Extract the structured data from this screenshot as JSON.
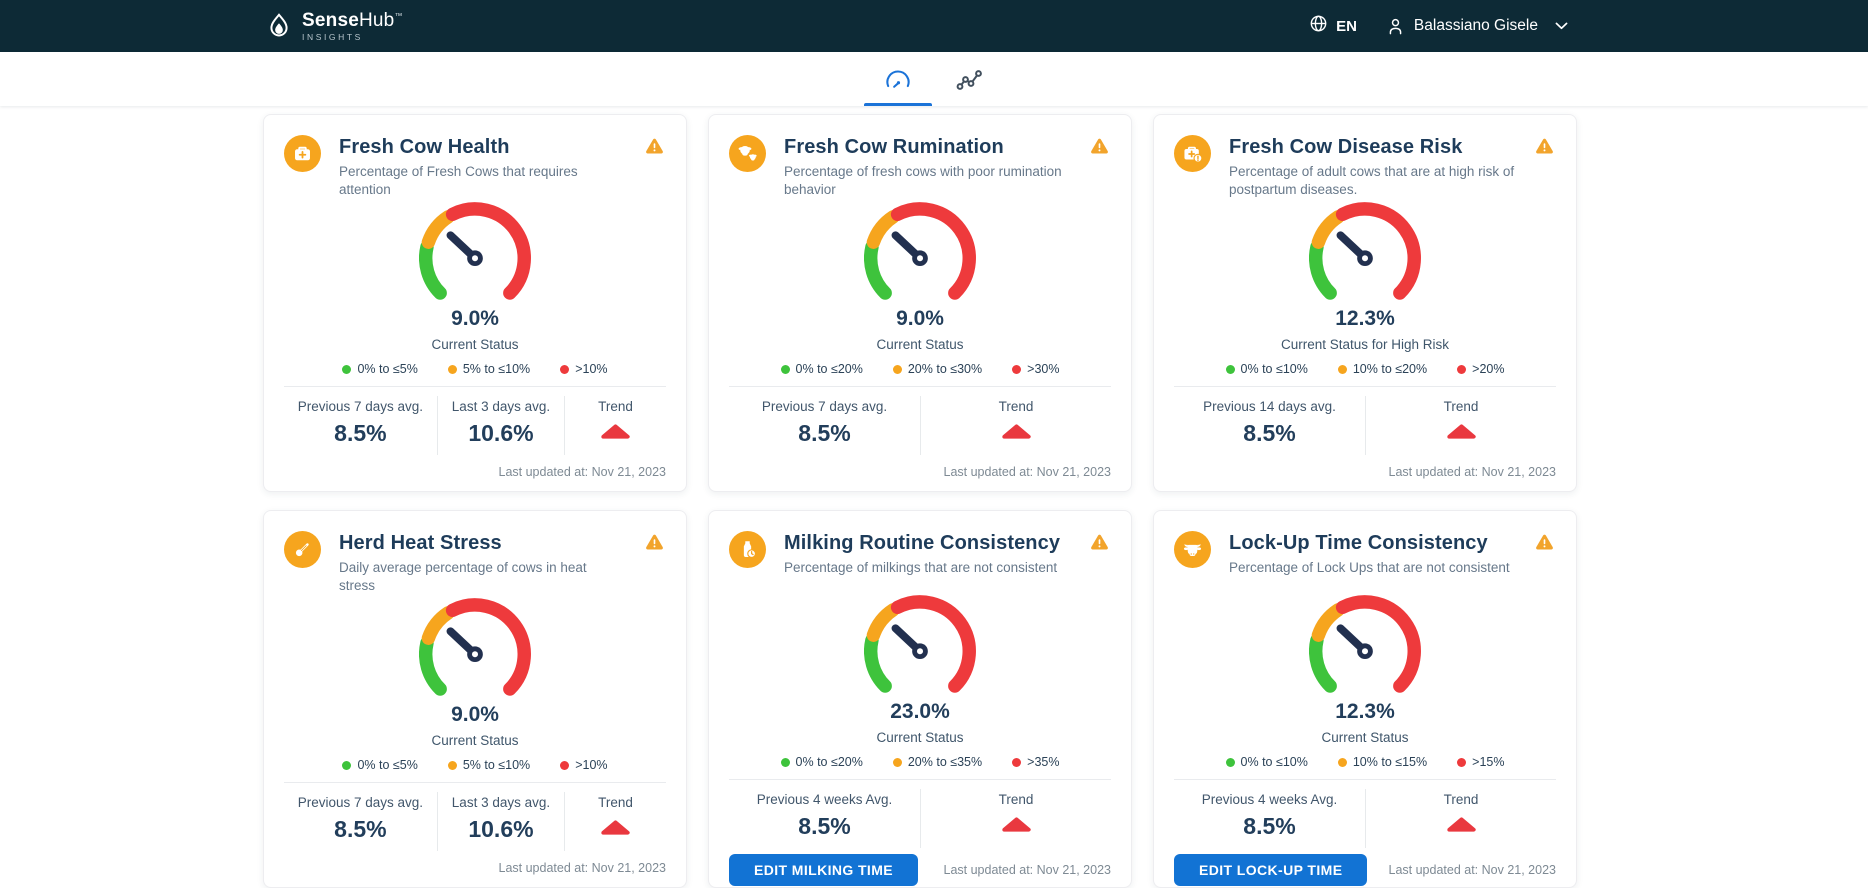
{
  "colors": {
    "header_bg": "#0d2a36",
    "accent_blue": "#1b73d8",
    "green": "#3ec33c",
    "orange": "#f6a51e",
    "red": "#ee3a3c",
    "trend_red": "#e9383f",
    "warning": "#f2a42c",
    "needle": "#22304f"
  },
  "header": {
    "brand_bold": "Sense",
    "brand_light": "Hub",
    "brand_tm": "™",
    "brand_sub": "INSIGHTS",
    "language": "EN",
    "user_name": "Balassiano Gisele"
  },
  "tabs": [
    {
      "id": "gauges",
      "icon": "gauge-icon",
      "active": true
    },
    {
      "id": "analytics",
      "icon": "analytics-icon",
      "active": false
    }
  ],
  "cards": [
    {
      "title": "Fresh Cow Health",
      "subtitle": "Percentage of Fresh Cows that requires attention",
      "icon": "medkit",
      "alert": true,
      "gauge": {
        "value": "9.0%",
        "label": "Current Status",
        "needle_deg": 137
      },
      "legend": [
        {
          "color": "#3ec33c",
          "label": "0% to ≤5%"
        },
        {
          "color": "#f6a51e",
          "label": "5% to ≤10%"
        },
        {
          "color": "#ee3a3c",
          "label": ">10%"
        }
      ],
      "stats": [
        {
          "label": "Previous 7 days avg.",
          "value": "8.5%"
        },
        {
          "label": "Last 3 days avg.",
          "value": "10.6%"
        },
        {
          "label": "Trend",
          "trend": "up"
        }
      ],
      "button": null,
      "last_updated": "Last updated at: Nov 21, 2023"
    },
    {
      "title": "Fresh Cow Rumination",
      "subtitle": "Percentage of fresh cows with poor rumination behavior",
      "icon": "cow-pair",
      "alert": true,
      "gauge": {
        "value": "9.0%",
        "label": "Current Status",
        "needle_deg": 137
      },
      "legend": [
        {
          "color": "#3ec33c",
          "label": "0% to ≤20%"
        },
        {
          "color": "#f6a51e",
          "label": "20% to ≤30%"
        },
        {
          "color": "#ee3a3c",
          "label": ">30%"
        }
      ],
      "stats": [
        {
          "label": "Previous 7 days avg.",
          "value": "8.5%"
        },
        {
          "label": "Trend",
          "trend": "up"
        }
      ],
      "button": null,
      "last_updated": "Last updated at: Nov 21, 2023"
    },
    {
      "title": "Fresh Cow Disease Risk",
      "subtitle": "Percentage of adult cows that are at high risk of postpartum diseases.",
      "icon": "medkit-alert",
      "alert": true,
      "gauge": {
        "value": "12.3%",
        "label": "Current Status for High Risk",
        "needle_deg": 137
      },
      "legend": [
        {
          "color": "#3ec33c",
          "label": "0% to ≤10%"
        },
        {
          "color": "#f6a51e",
          "label": "10% to ≤20%"
        },
        {
          "color": "#ee3a3c",
          "label": ">20%"
        }
      ],
      "stats": [
        {
          "label": "Previous 14 days avg.",
          "value": "8.5%"
        },
        {
          "label": "Trend",
          "trend": "up"
        }
      ],
      "button": null,
      "last_updated": "Last updated at: Nov 21, 2023"
    },
    {
      "title": "Herd Heat Stress",
      "subtitle": "Daily average percentage of cows in heat stress",
      "icon": "thermometer",
      "alert": true,
      "gauge": {
        "value": "9.0%",
        "label": "Current Status",
        "needle_deg": 137
      },
      "legend": [
        {
          "color": "#3ec33c",
          "label": "0% to ≤5%"
        },
        {
          "color": "#f6a51e",
          "label": "5% to ≤10%"
        },
        {
          "color": "#ee3a3c",
          "label": ">10%"
        }
      ],
      "stats": [
        {
          "label": "Previous 7 days avg.",
          "value": "8.5%"
        },
        {
          "label": "Last 3 days avg.",
          "value": "10.6%"
        },
        {
          "label": "Trend",
          "trend": "up"
        }
      ],
      "button": null,
      "last_updated": "Last updated at: Nov 21, 2023"
    },
    {
      "title": "Milking Routine Consistency",
      "subtitle": "Percentage of milkings that are not consistent",
      "icon": "milk-bottle",
      "alert": true,
      "gauge": {
        "value": "23.0%",
        "label": "Current Status",
        "needle_deg": 137
      },
      "legend": [
        {
          "color": "#3ec33c",
          "label": "0% to ≤20%"
        },
        {
          "color": "#f6a51e",
          "label": "20% to ≤35%"
        },
        {
          "color": "#ee3a3c",
          "label": ">35%"
        }
      ],
      "stats": [
        {
          "label": "Previous 4 weeks Avg.",
          "value": "8.5%"
        },
        {
          "label": "Trend",
          "trend": "up"
        }
      ],
      "button": {
        "label": "EDIT MILKING TIME"
      },
      "last_updated": "Last updated at: Nov 21, 2023"
    },
    {
      "title": "Lock-Up Time Consistency",
      "subtitle": "Percentage of Lock Ups that are not consistent",
      "icon": "cow-lockup",
      "alert": true,
      "gauge": {
        "value": "12.3%",
        "label": "Current Status",
        "needle_deg": 137
      },
      "legend": [
        {
          "color": "#3ec33c",
          "label": "0% to ≤10%"
        },
        {
          "color": "#f6a51e",
          "label": "10% to ≤15%"
        },
        {
          "color": "#ee3a3c",
          "label": ">15%"
        }
      ],
      "stats": [
        {
          "label": "Previous 4 weeks Avg.",
          "value": "8.5%"
        },
        {
          "label": "Trend",
          "trend": "up"
        }
      ],
      "button": {
        "label": "EDIT LOCK-UP TIME"
      },
      "last_updated": "Last updated at: Nov 21, 2023"
    }
  ]
}
